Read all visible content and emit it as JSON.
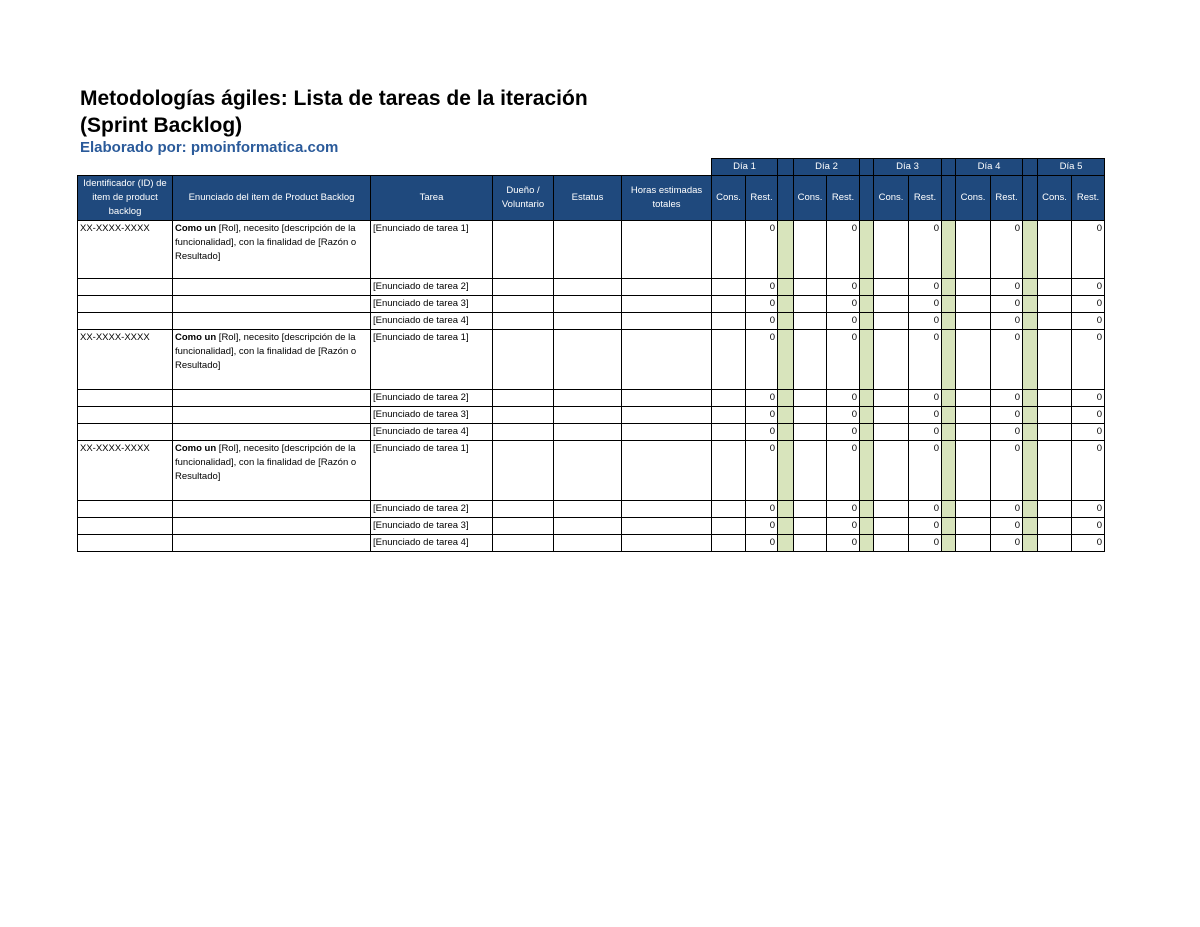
{
  "title_line1": "Metodologías ágiles: Lista de tareas de la iteración",
  "title_line2": "(Sprint Backlog)",
  "author": "Elaborado por: pmoinformatica.com",
  "colors": {
    "header": "#1f497d",
    "separator": "#d8e4bc",
    "author": "#2a5a9a"
  },
  "headers": {
    "id": "Identificador (ID) de item de product backlog",
    "enunciado": "Enunciado del item de Product Backlog",
    "tarea": "Tarea",
    "dueno": "Dueño / Voluntario",
    "estatus": "Estatus",
    "horas": "Horas estimadas totales",
    "cons": "Cons.",
    "rest": "Rest."
  },
  "days": [
    "Día 1",
    "Día 2",
    "Día 3",
    "Día 4",
    "Día 5"
  ],
  "groups": [
    {
      "id": "XX-XXXX-XXXX",
      "story_bold": "Como un",
      "story_rest": " [Rol], necesito [descripción de la funcionalidad], con la finalidad de [Razón o Resultado]",
      "tasks": [
        "[Enunciado de tarea 1]",
        "[Enunciado de tarea 2]",
        "[Enunciado de tarea 3]",
        "[Enunciado de tarea 4]"
      ],
      "rest": "0"
    },
    {
      "id": "XX-XXXX-XXXX",
      "story_bold": "Como un",
      "story_rest": " [Rol], necesito [descripción de la funcionalidad], con la finalidad de [Razón o Resultado]",
      "tasks": [
        "[Enunciado de tarea 1]",
        "[Enunciado de tarea 2]",
        "[Enunciado de tarea 3]",
        "[Enunciado de tarea 4]"
      ],
      "rest": "0"
    },
    {
      "id": "XX-XXXX-XXXX",
      "story_bold": "Como un",
      "story_rest": " [Rol], necesito [descripción de la funcionalidad], con la finalidad de [Razón o Resultado]",
      "tasks": [
        "[Enunciado de tarea 1]",
        "[Enunciado de tarea 2]",
        "[Enunciado de tarea 3]",
        "[Enunciado de tarea 4]"
      ],
      "rest": "0"
    }
  ]
}
